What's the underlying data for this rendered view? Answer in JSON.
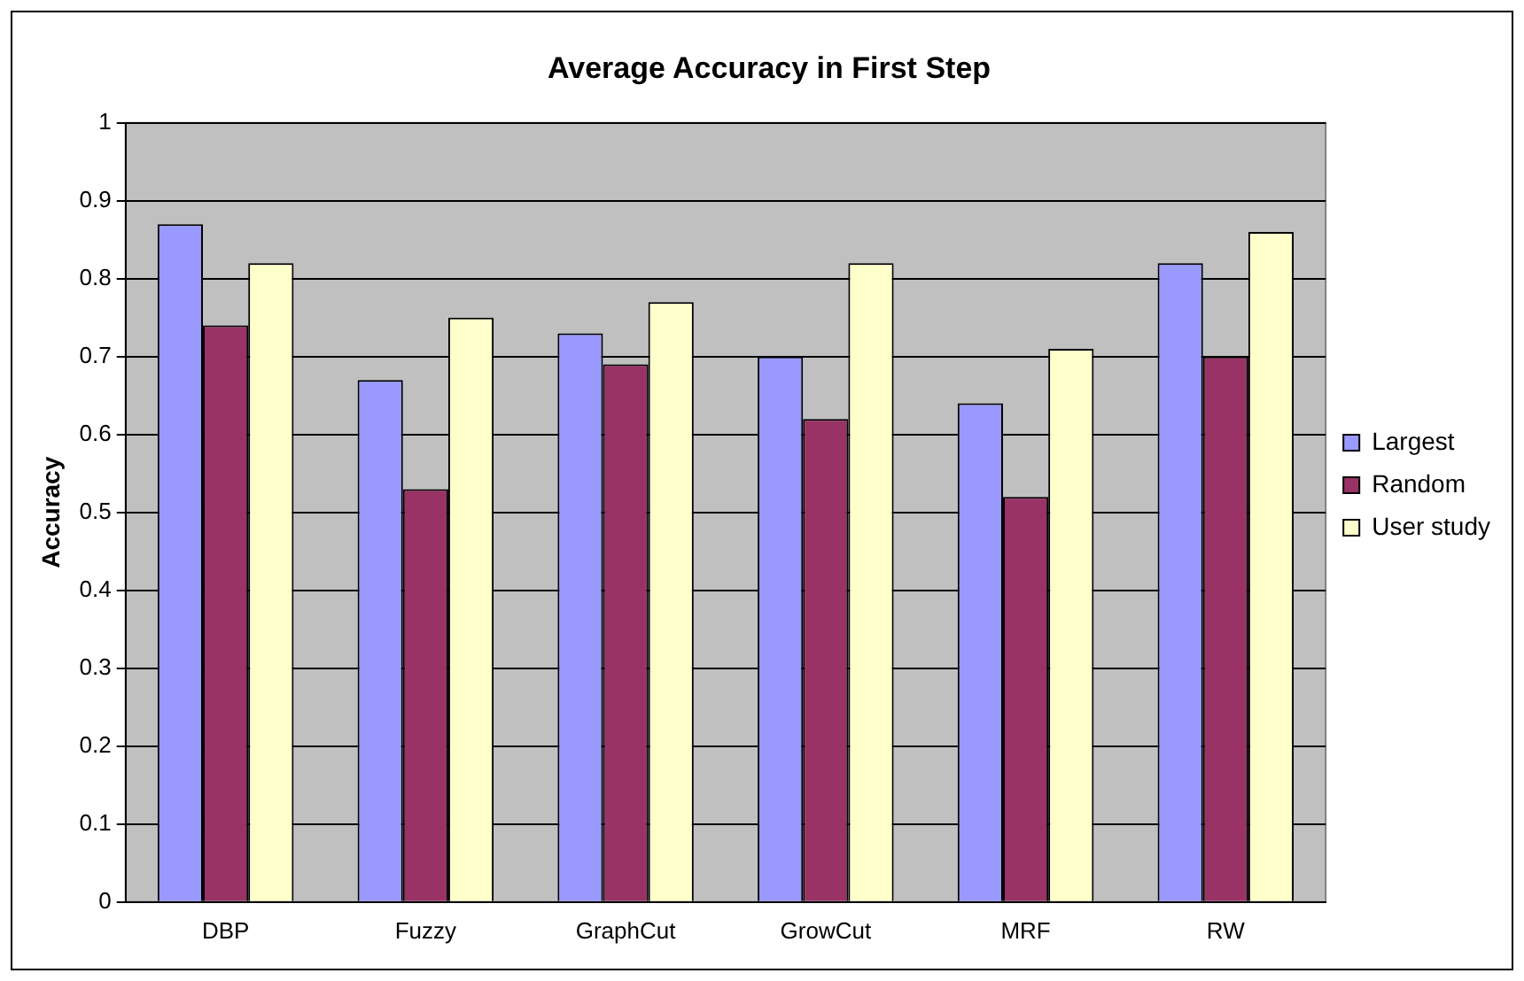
{
  "chart_data": {
    "type": "bar",
    "title": "Average Accuracy in First Step",
    "ylabel": "Accuracy",
    "categories": [
      "DBP",
      "Fuzzy",
      "GraphCut",
      "GrowCut",
      "MRF",
      "RW"
    ],
    "series": [
      {
        "name": "Largest",
        "color": "#9999ff",
        "values": [
          0.87,
          0.67,
          0.73,
          0.7,
          0.64,
          0.82
        ]
      },
      {
        "name": "Random",
        "color": "#993366",
        "values": [
          0.74,
          0.53,
          0.69,
          0.62,
          0.52,
          0.7
        ]
      },
      {
        "name": "User study",
        "color": "#ffffcc",
        "values": [
          0.82,
          0.75,
          0.77,
          0.82,
          0.71,
          0.86
        ]
      }
    ],
    "ylim": [
      0,
      1
    ],
    "yticks": [
      0,
      0.1,
      0.2,
      0.3,
      0.4,
      0.5,
      0.6,
      0.7,
      0.8,
      0.9,
      1
    ],
    "grid": "y",
    "legend": "right"
  }
}
